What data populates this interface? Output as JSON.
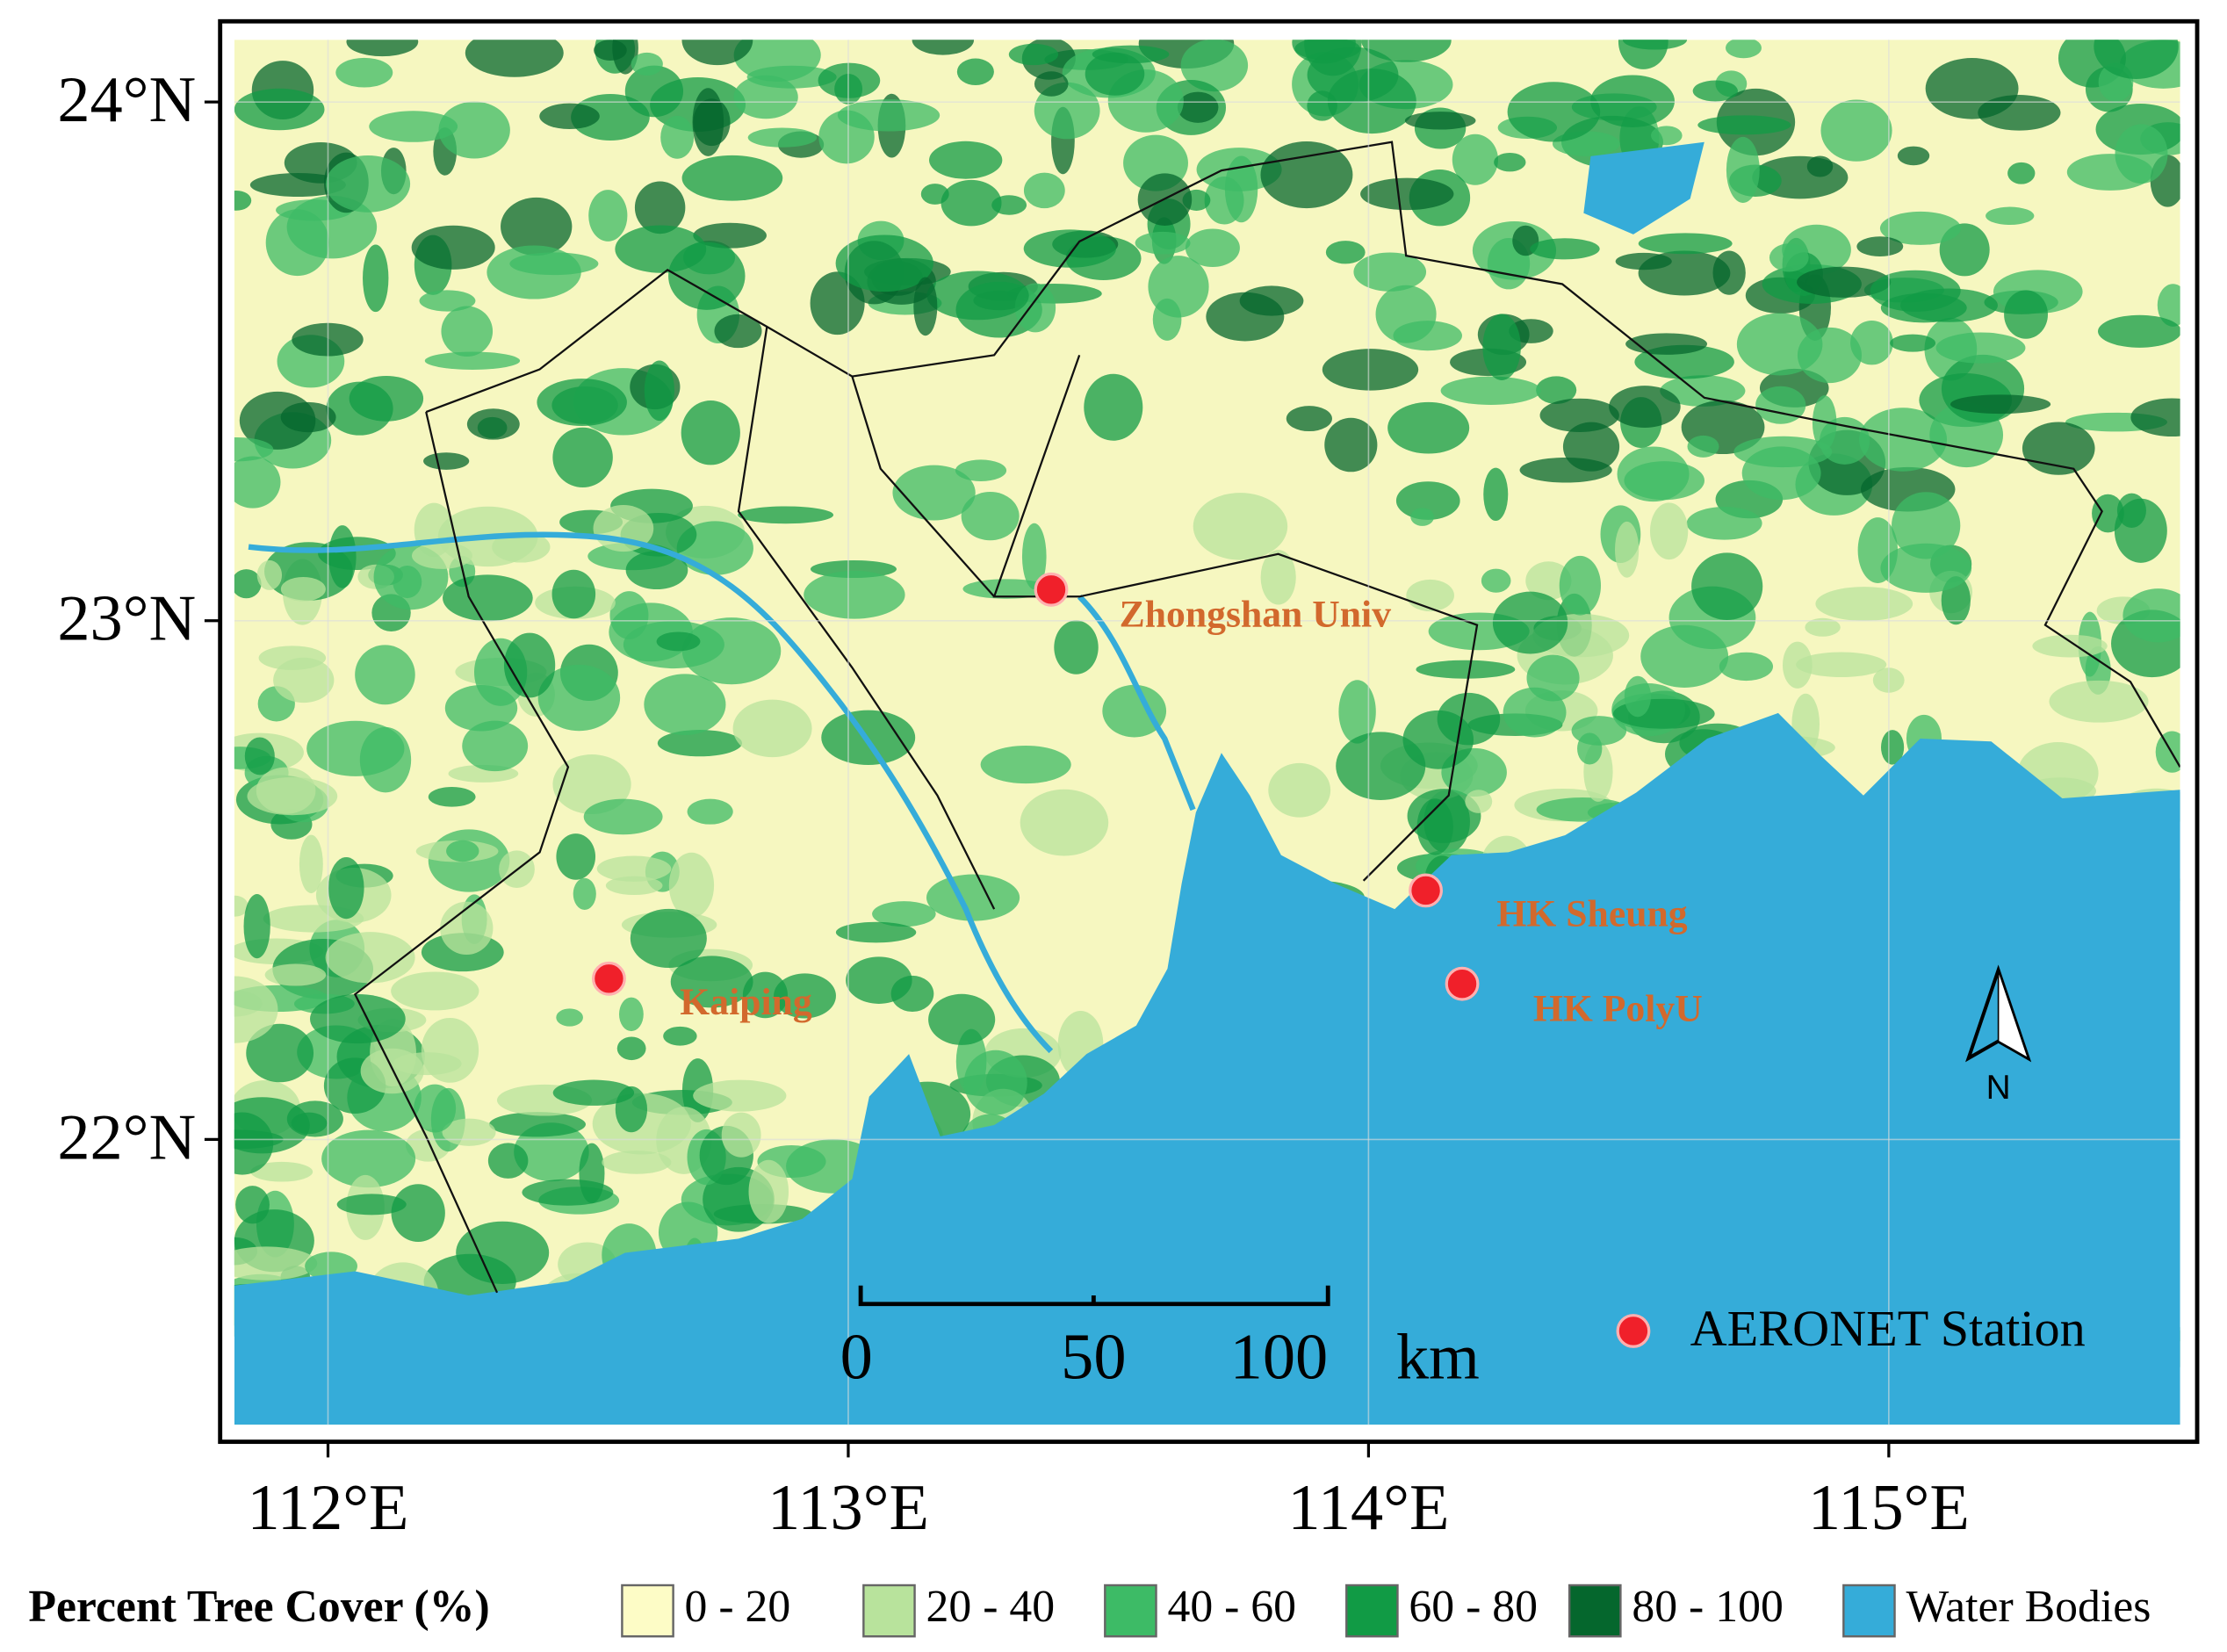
{
  "map": {
    "xlim": [
      111.82,
      115.56
    ],
    "ylim": [
      21.45,
      24.12
    ],
    "xticks": [
      {
        "value": 112,
        "label": "112°E"
      },
      {
        "value": 113,
        "label": "113°E"
      },
      {
        "value": 114,
        "label": "114°E"
      },
      {
        "value": 115,
        "label": "115°E"
      }
    ],
    "yticks": [
      {
        "value": 22,
        "label": "22°N"
      },
      {
        "value": 23,
        "label": "23°N"
      },
      {
        "value": 24,
        "label": "24°N"
      }
    ],
    "grid": true,
    "stations": [
      {
        "name": "Zhongshan Univ",
        "lon": 113.39,
        "lat": 23.06
      },
      {
        "name": "Kaiping",
        "lon": 112.54,
        "lat": 22.31
      },
      {
        "name": "HK Sheung",
        "lon": 114.11,
        "lat": 22.48
      },
      {
        "name": "HK PolyU",
        "lon": 114.18,
        "lat": 22.3
      }
    ],
    "station_color": "#f0202a",
    "station_legend": "AERONET Station",
    "scale_bar": {
      "ticks": [
        0,
        50,
        100
      ],
      "unit": "km"
    },
    "north": "N",
    "legend": {
      "title": "Percent Tree Cover (%)",
      "items": [
        {
          "label": "0 - 20",
          "color": "#fdfcc6"
        },
        {
          "label": "20 - 40",
          "color": "#b8e39c"
        },
        {
          "label": "40 - 60",
          "color": "#3dbb66"
        },
        {
          "label": "60 - 80",
          "color": "#119b45"
        },
        {
          "label": "80 - 100",
          "color": "#05672d"
        },
        {
          "label": "Water Bodies",
          "color": "#35acd9"
        }
      ]
    }
  }
}
